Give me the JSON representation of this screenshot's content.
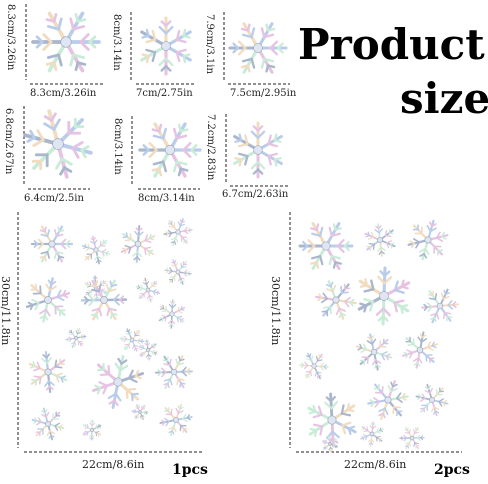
{
  "title": {
    "line1": "Product",
    "line2": "size"
  },
  "stickers": [
    {
      "width_label": "8.3cm/3.26in",
      "height_label": "8.3cm/3.26in"
    },
    {
      "width_label": "7cm/2.75in",
      "height_label": "8cm/3.14in"
    },
    {
      "width_label": "7.5cm/2.95in",
      "height_label": "7.9cm/3.1in"
    },
    {
      "width_label": "6.4cm/2.5in",
      "height_label": "6.8cm/2.67in"
    },
    {
      "width_label": "8cm/3.14in",
      "height_label": "8cm/3.14in"
    },
    {
      "width_label": "6.7cm/2.63in",
      "height_label": "7.2cm/2.83in"
    }
  ],
  "sheets": [
    {
      "width_label": "22cm/8.6in",
      "height_label": "30cm/11.8in",
      "quantity": "1pcs"
    },
    {
      "width_label": "22cm/8.6in",
      "height_label": "30cm/11.8in",
      "quantity": "2pcs"
    }
  ],
  "colors": {
    "iridescent_a": "#c7d8f0",
    "iridescent_b": "#e9c7e6",
    "iridescent_c": "#d6f0e0",
    "outline": "#9aa3b3"
  }
}
